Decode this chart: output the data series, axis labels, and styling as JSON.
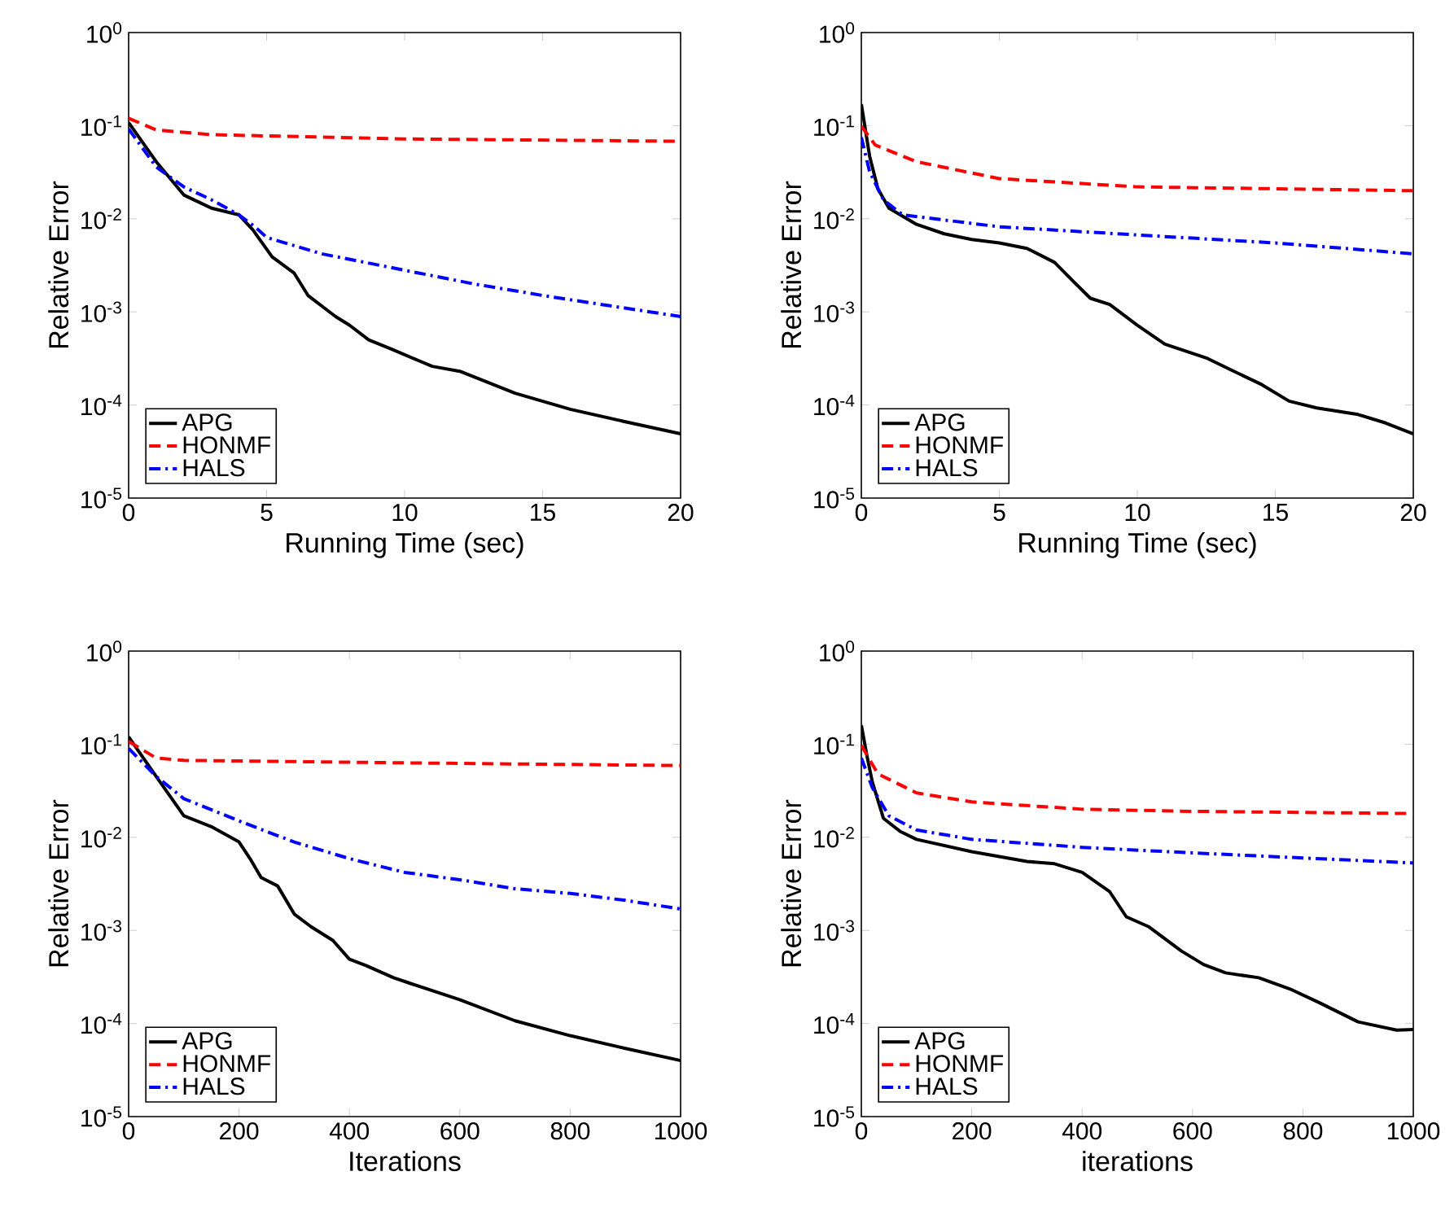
{
  "chart_data": [
    {
      "type": "line",
      "xlabel": "Running Time (sec)",
      "ylabel": "Relative Error",
      "log": "y",
      "legend": "bottom left",
      "xlim": [
        0,
        20
      ],
      "xticks": [
        0,
        5,
        10,
        15,
        20
      ],
      "ylim": [
        1e-05,
        1
      ],
      "yticks": [
        {
          "value": 1e-05,
          "label": "10$^{-5}$"
        },
        {
          "value": 0.0001,
          "label": "10$^{-4}$"
        },
        {
          "value": 0.001,
          "label": "10$^{-3}$"
        },
        {
          "value": 0.01,
          "label": "10$^{-2}$"
        },
        {
          "value": 0.1,
          "label": "10$^{-1}$"
        },
        {
          "value": 1,
          "label": "10$^{0}$"
        }
      ],
      "series": [
        {
          "name": "APG",
          "color": "#000000",
          "line_style": "solid",
          "x": [
            0,
            1,
            2,
            3,
            4,
            4.5,
            5.2,
            6,
            6.5,
            7.5,
            8,
            8.7,
            9.5,
            10.5,
            11,
            12,
            14,
            16,
            18,
            20
          ],
          "values": [
            0.108,
            0.041,
            0.018,
            0.013,
            0.011,
            0.0076,
            0.0039,
            0.0026,
            0.0015,
            0.00089,
            0.00072,
            0.0005,
            0.0004,
            0.0003,
            0.00026,
            0.00023,
            0.000134,
            9e-05,
            6.6e-05,
            4.9e-05
          ]
        },
        {
          "name": "HONMF",
          "color": "#ff0000",
          "line_style": "dashed",
          "x": [
            0,
            1,
            3,
            10,
            20
          ],
          "values": [
            0.12,
            0.09,
            0.08,
            0.072,
            0.068
          ]
        },
        {
          "name": "HALS",
          "color": "#0000ff",
          "line_style": "dashdot",
          "x": [
            0,
            1,
            2,
            3,
            4,
            4.6,
            5,
            7,
            10,
            12.5,
            15,
            20
          ],
          "values": [
            0.092,
            0.036,
            0.022,
            0.016,
            0.011,
            0.0081,
            0.0063,
            0.0042,
            0.0028,
            0.002,
            0.0015,
            0.00089
          ]
        }
      ]
    },
    {
      "type": "line",
      "xlabel": "Running Time (sec)",
      "ylabel": "Relative Error",
      "log": "y",
      "legend": "bottom left",
      "xlim": [
        0,
        20
      ],
      "xticks": [
        0,
        5,
        10,
        15,
        20
      ],
      "ylim": [
        1e-05,
        1
      ],
      "yticks": [
        {
          "value": 1e-05,
          "label": "10$^{-5}$"
        },
        {
          "value": 0.0001,
          "label": "10$^{-4}$"
        },
        {
          "value": 0.001,
          "label": "10$^{-3}$"
        },
        {
          "value": 0.01,
          "label": "10$^{-2}$"
        },
        {
          "value": 0.1,
          "label": "10$^{-1}$"
        },
        {
          "value": 1,
          "label": "10$^{0}$"
        }
      ],
      "series": [
        {
          "name": "APG",
          "color": "#000000",
          "line_style": "solid",
          "x": [
            0,
            0.3,
            0.6,
            1,
            2,
            3,
            4,
            5,
            6,
            7,
            7.7,
            8.3,
            9,
            10,
            11,
            12.5,
            13.5,
            14.5,
            15.5,
            16.5,
            18,
            19,
            20
          ],
          "values": [
            0.17,
            0.047,
            0.021,
            0.013,
            0.0087,
            0.0069,
            0.006,
            0.0055,
            0.0048,
            0.0034,
            0.0021,
            0.0014,
            0.0012,
            0.00072,
            0.00045,
            0.00032,
            0.00023,
            0.000166,
            0.00011,
            9.3e-05,
            7.9e-05,
            6.4e-05,
            4.9e-05
          ]
        },
        {
          "name": "HONMF",
          "color": "#ff0000",
          "line_style": "dashed",
          "x": [
            0,
            0.5,
            2,
            5,
            10,
            15,
            20
          ],
          "values": [
            0.099,
            0.062,
            0.041,
            0.027,
            0.022,
            0.021,
            0.02
          ]
        },
        {
          "name": "HALS",
          "color": "#0000ff",
          "line_style": "dashdot",
          "x": [
            0,
            0.3,
            0.8,
            1.5,
            5,
            10,
            15,
            20
          ],
          "values": [
            0.075,
            0.032,
            0.016,
            0.011,
            0.0082,
            0.0067,
            0.0055,
            0.0042
          ]
        }
      ]
    },
    {
      "type": "line",
      "xlabel": "Iterations",
      "ylabel": "Relative Error",
      "log": "y",
      "legend": "bottom left",
      "xlim": [
        0,
        1000
      ],
      "xticks": [
        0,
        200,
        400,
        600,
        800,
        1000
      ],
      "ylim": [
        1e-05,
        1
      ],
      "yticks": [
        {
          "value": 1e-05,
          "label": "10$^{-5}$"
        },
        {
          "value": 0.0001,
          "label": "10$^{-4}$"
        },
        {
          "value": 0.001,
          "label": "10$^{-3}$"
        },
        {
          "value": 0.01,
          "label": "10$^{-2}$"
        },
        {
          "value": 0.1,
          "label": "10$^{-1}$"
        },
        {
          "value": 1,
          "label": "10$^{0}$"
        }
      ],
      "series": [
        {
          "name": "APG",
          "color": "#000000",
          "line_style": "solid",
          "x": [
            0,
            50,
            100,
            150,
            200,
            220,
            240,
            270,
            300,
            330,
            370,
            400,
            430,
            480,
            510,
            600,
            700,
            800,
            900,
            1000
          ],
          "values": [
            0.12,
            0.045,
            0.017,
            0.013,
            0.0089,
            0.0059,
            0.0037,
            0.003,
            0.0015,
            0.0011,
            0.00078,
            0.00049,
            0.00042,
            0.00031,
            0.00027,
            0.00018,
            0.000107,
            7.4e-05,
            5.4e-05,
            4e-05
          ]
        },
        {
          "name": "HONMF",
          "color": "#ff0000",
          "line_style": "dashed",
          "x": [
            0,
            50,
            100,
            500,
            1000
          ],
          "values": [
            0.107,
            0.071,
            0.067,
            0.063,
            0.059
          ]
        },
        {
          "name": "HALS",
          "color": "#0000ff",
          "line_style": "dashdot",
          "x": [
            0,
            50,
            100,
            200,
            300,
            400,
            500,
            600,
            700,
            800,
            900,
            1000
          ],
          "values": [
            0.09,
            0.045,
            0.026,
            0.015,
            0.0089,
            0.0059,
            0.0042,
            0.0035,
            0.0028,
            0.0025,
            0.0021,
            0.0017
          ]
        }
      ]
    },
    {
      "type": "line",
      "xlabel": "iterations",
      "ylabel": "Relative Error",
      "log": "y",
      "legend": "bottom left",
      "xlim": [
        0,
        1000
      ],
      "xticks": [
        0,
        200,
        400,
        600,
        800,
        1000
      ],
      "ylim": [
        1e-05,
        1
      ],
      "yticks": [
        {
          "value": 1e-05,
          "label": "10$^{-5}$"
        },
        {
          "value": 0.0001,
          "label": "10$^{-4}$"
        },
        {
          "value": 0.001,
          "label": "10$^{-3}$"
        },
        {
          "value": 0.01,
          "label": "10$^{-2}$"
        },
        {
          "value": 0.1,
          "label": "10$^{-1}$"
        },
        {
          "value": 1,
          "label": "10$^{0}$"
        }
      ],
      "series": [
        {
          "name": "APG",
          "color": "#000000",
          "line_style": "solid",
          "x": [
            0,
            10,
            20,
            40,
            70,
            100,
            200,
            300,
            350,
            400,
            450,
            480,
            520,
            580,
            620,
            660,
            720,
            780,
            830,
            900,
            970,
            1000
          ],
          "values": [
            0.16,
            0.076,
            0.039,
            0.016,
            0.0116,
            0.0095,
            0.007,
            0.0055,
            0.0052,
            0.0042,
            0.0026,
            0.0014,
            0.0011,
            0.0006,
            0.00043,
            0.00035,
            0.00031,
            0.00023,
            0.000167,
            0.000104,
            8.5e-05,
            8.6e-05
          ]
        },
        {
          "name": "HONMF",
          "color": "#ff0000",
          "line_style": "dashed",
          "x": [
            0,
            30,
            100,
            200,
            400,
            600,
            1000
          ],
          "values": [
            0.097,
            0.048,
            0.03,
            0.024,
            0.02,
            0.019,
            0.018
          ]
        },
        {
          "name": "HALS",
          "color": "#0000ff",
          "line_style": "dashdot",
          "x": [
            0,
            20,
            50,
            100,
            200,
            400,
            600,
            800,
            1000
          ],
          "values": [
            0.071,
            0.034,
            0.017,
            0.012,
            0.0095,
            0.0078,
            0.0068,
            0.006,
            0.0053
          ]
        }
      ]
    }
  ]
}
